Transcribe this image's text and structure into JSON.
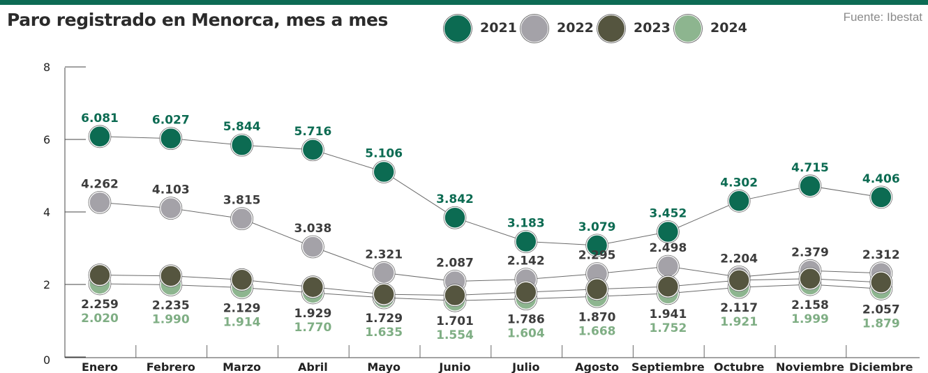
{
  "header": {
    "title": "Paro registrado en Menorca, mes a mes",
    "source": "Fuente: Ibestat"
  },
  "colors": {
    "2021": "#0c6b52",
    "2022": "#a4a2a8",
    "2023": "#55553f",
    "2024": "#8db58f",
    "top_bar": "#0d6b54"
  },
  "chart_data": {
    "type": "line",
    "title": "Paro registrado en Menorca, mes a mes",
    "xlabel": "",
    "ylabel": "",
    "ylim": [
      0,
      8
    ],
    "yticks": [
      "0",
      "2",
      "4",
      "6",
      "8"
    ],
    "grid": false,
    "legend_position": "top",
    "categories": [
      "Enero",
      "Febrero",
      "Marzo",
      "Abril",
      "Mayo",
      "Junio",
      "Julio",
      "Agosto",
      "Septiembre",
      "Octubre",
      "Noviembre",
      "Diciembre"
    ],
    "series": [
      {
        "name": "2021",
        "color": "#0c6b52",
        "label_color": "#0c6b52",
        "label_side": "above",
        "values": [
          6.081,
          6.027,
          5.844,
          5.716,
          5.106,
          3.842,
          3.183,
          3.079,
          3.452,
          4.302,
          4.715,
          4.406
        ],
        "labels": [
          "6.081",
          "6.027",
          "5.844",
          "5.716",
          "5.106",
          "3.842",
          "3.183",
          "3.079",
          "3.452",
          "4.302",
          "4.715",
          "4.406"
        ]
      },
      {
        "name": "2022",
        "color": "#a4a2a8",
        "label_color": "#3c3c3c",
        "label_side": "above",
        "values": [
          4.262,
          4.103,
          3.815,
          3.038,
          2.321,
          2.087,
          2.142,
          2.295,
          2.498,
          2.204,
          2.379,
          2.312
        ],
        "labels": [
          "4.262",
          "4.103",
          "3.815",
          "3.038",
          "2.321",
          "2.087",
          "2.142",
          "2.295",
          "2.498",
          "2.204",
          "2.379",
          "2.312"
        ]
      },
      {
        "name": "2024",
        "color": "#8db58f",
        "label_color": "#7fae84",
        "label_side": "below2",
        "values": [
          2.02,
          1.99,
          1.914,
          1.77,
          1.635,
          1.554,
          1.604,
          1.668,
          1.752,
          1.921,
          1.999,
          1.879
        ],
        "labels": [
          "2.020",
          "1.990",
          "1.914",
          "1.770",
          "1.635",
          "1.554",
          "1.604",
          "1.668",
          "1.752",
          "1.921",
          "1.999",
          "1.879"
        ]
      },
      {
        "name": "2023",
        "color": "#55553f",
        "label_color": "#3c3c3c",
        "label_side": "below1",
        "values": [
          2.259,
          2.235,
          2.129,
          1.929,
          1.729,
          1.701,
          1.786,
          1.87,
          1.941,
          2.117,
          2.158,
          2.057
        ],
        "labels": [
          "2.259",
          "2.235",
          "2.129",
          "1.929",
          "1.729",
          "1.701",
          "1.786",
          "1.870",
          "1.941",
          "2.117",
          "2.158",
          "2.057"
        ]
      }
    ]
  }
}
